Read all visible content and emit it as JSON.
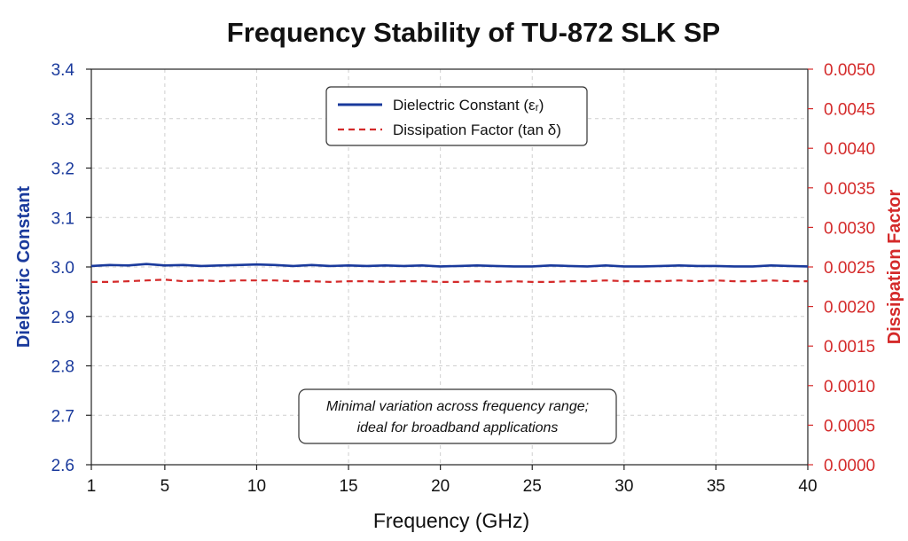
{
  "chart_data": {
    "type": "line",
    "title": "Frequency Stability of TU-872 SLK SP",
    "xlabel": "Frequency (GHz)",
    "ylabel_left": "Dielectric Constant",
    "ylabel_right": "Dissipation Factor",
    "xlim": [
      1,
      40
    ],
    "ylim_left": [
      2.6,
      3.4
    ],
    "ylim_right": [
      0.0,
      0.005
    ],
    "x_ticks": [
      "1",
      "5",
      "10",
      "15",
      "20",
      "25",
      "30",
      "35",
      "40"
    ],
    "x_tick_values": [
      1,
      5,
      10,
      15,
      20,
      25,
      30,
      35,
      40
    ],
    "y_left_ticks": [
      "3.4",
      "3.3",
      "3.2",
      "3.1",
      "3.0",
      "2.9",
      "2.8",
      "2.7",
      "2.6"
    ],
    "y_left_tick_values": [
      3.4,
      3.3,
      3.2,
      3.1,
      3.0,
      2.9,
      2.8,
      2.7,
      2.6
    ],
    "y_right_ticks": [
      "0.0050",
      "0.0045",
      "0.0040",
      "0.0035",
      "0.0030",
      "0.0025",
      "0.0020",
      "0.0015",
      "0.0010",
      "0.0005",
      "0.0000"
    ],
    "y_right_tick_values": [
      0.005,
      0.0045,
      0.004,
      0.0035,
      0.003,
      0.0025,
      0.002,
      0.0015,
      0.001,
      0.0005,
      0.0
    ],
    "grid": true,
    "legend_position": "top-center",
    "series": [
      {
        "name": "Dielectric Constant (εᵣ)",
        "axis": "left",
        "color": "#1a3a9c",
        "style": "solid",
        "x": [
          1,
          2,
          3,
          4,
          5,
          6,
          7,
          8,
          9,
          10,
          11,
          12,
          13,
          14,
          15,
          16,
          17,
          18,
          19,
          20,
          21,
          22,
          23,
          24,
          25,
          26,
          27,
          28,
          29,
          30,
          31,
          32,
          33,
          34,
          35,
          36,
          37,
          38,
          39,
          40
        ],
        "y": [
          3.002,
          3.004,
          3.003,
          3.006,
          3.003,
          3.004,
          3.002,
          3.003,
          3.004,
          3.005,
          3.004,
          3.002,
          3.004,
          3.002,
          3.003,
          3.002,
          3.003,
          3.002,
          3.003,
          3.001,
          3.002,
          3.003,
          3.002,
          3.001,
          3.001,
          3.003,
          3.002,
          3.001,
          3.003,
          3.001,
          3.001,
          3.002,
          3.003,
          3.002,
          3.002,
          3.001,
          3.001,
          3.003,
          3.002,
          3.001
        ]
      },
      {
        "name": "Dissipation Factor (tan δ)",
        "axis": "right",
        "color": "#d42a2a",
        "style": "dashed",
        "x": [
          1,
          2,
          3,
          4,
          5,
          6,
          7,
          8,
          9,
          10,
          11,
          12,
          13,
          14,
          15,
          16,
          17,
          18,
          19,
          20,
          21,
          22,
          23,
          24,
          25,
          26,
          27,
          28,
          29,
          30,
          31,
          32,
          33,
          34,
          35,
          36,
          37,
          38,
          39,
          40
        ],
        "y": [
          0.00231,
          0.00231,
          0.00232,
          0.00233,
          0.00234,
          0.00232,
          0.00233,
          0.00232,
          0.00233,
          0.00233,
          0.00233,
          0.00232,
          0.00232,
          0.00231,
          0.00232,
          0.00232,
          0.00231,
          0.00232,
          0.00232,
          0.00231,
          0.00231,
          0.00232,
          0.00231,
          0.00232,
          0.00231,
          0.00231,
          0.00232,
          0.00232,
          0.00233,
          0.00232,
          0.00232,
          0.00232,
          0.00233,
          0.00232,
          0.00233,
          0.00232,
          0.00232,
          0.00233,
          0.00232,
          0.00232
        ]
      }
    ],
    "annotation": {
      "lines": [
        "Minimal variation across frequency range;",
        "ideal for broadband applications"
      ]
    }
  }
}
